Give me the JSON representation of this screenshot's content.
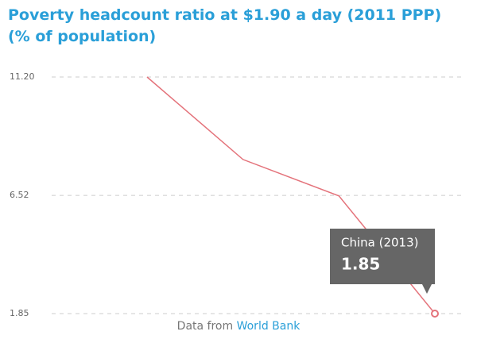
{
  "chart_data": {
    "type": "line",
    "title": "Poverty headcount ratio at $1.90 a day (2011 PPP) (% of population)",
    "categories": [
      null,
      null,
      null,
      null
    ],
    "values": [
      11.2,
      7.94,
      6.5,
      1.85
    ],
    "color": "#e4737b",
    "ylim": [
      1.85,
      11.2
    ],
    "yticks": [
      1.85,
      6.52,
      {
        "value": 11.2,
        "label": "11.20"
      }
    ],
    "grid": true,
    "tooltip_label": "China (2013)",
    "source_prefix": "Data from",
    "source": "World Bank"
  }
}
